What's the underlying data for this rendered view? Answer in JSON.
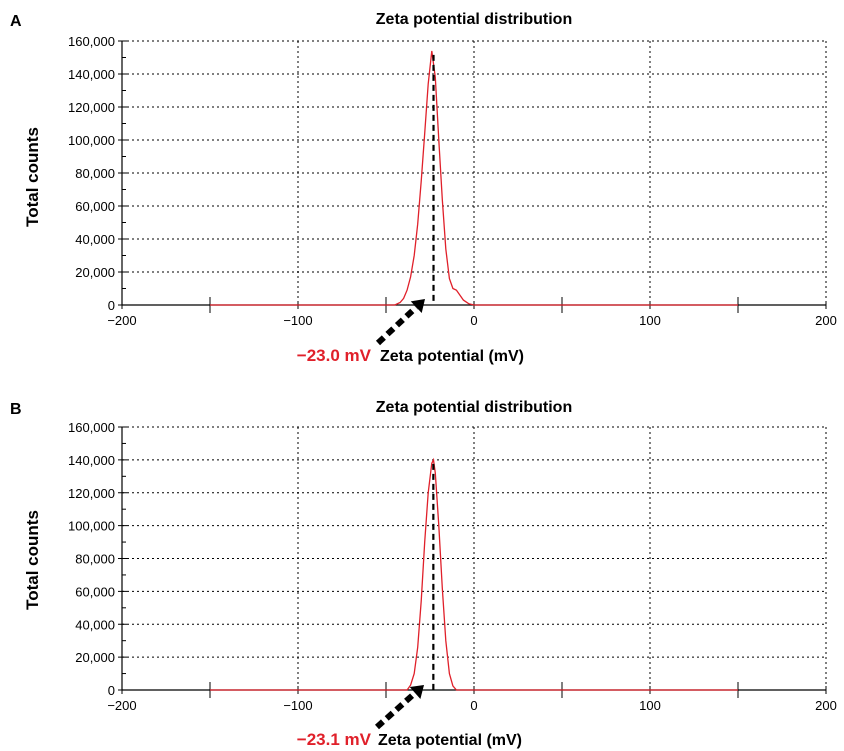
{
  "chart_data": [
    {
      "panel": "A",
      "type": "line",
      "title": "Zeta potential distribution",
      "xlabel": "Zeta potential (mV)",
      "ylabel": "Total counts",
      "xlim": [
        -200,
        200
      ],
      "ylim": [
        0,
        160000
      ],
      "xticks": [
        -200,
        -100,
        0,
        100,
        200
      ],
      "xtick_labels": [
        "−200",
        "−100",
        "0",
        "100",
        "200"
      ],
      "yticks": [
        0,
        20000,
        40000,
        60000,
        80000,
        100000,
        120000,
        140000,
        160000
      ],
      "ytick_labels": [
        "0",
        "20,000",
        "40,000",
        "60,000",
        "80,000",
        "100,000",
        "120,000",
        "140,000",
        "160,000"
      ],
      "grid": true,
      "line_color": "#e0202a",
      "peak_label": "−23.0 mV",
      "peak_x": -23.0,
      "series": [
        {
          "x": [
            -150,
            -45,
            -42,
            -40,
            -38,
            -36,
            -34,
            -32,
            -30,
            -28,
            -26,
            -24,
            -22,
            -20,
            -18,
            -16,
            -14,
            -12,
            -10,
            -8,
            -6,
            -3,
            0,
            150
          ],
          "y": [
            0,
            0,
            1500,
            4000,
            9000,
            17000,
            30000,
            49000,
            75000,
            104000,
            134000,
            154000,
            138000,
            100000,
            64000,
            34000,
            16000,
            10000,
            9000,
            6000,
            3000,
            800,
            0,
            0
          ]
        }
      ]
    },
    {
      "panel": "B",
      "type": "line",
      "title": "Zeta potential distribution",
      "xlabel": "Zeta potential (mV)",
      "ylabel": "Total counts",
      "xlim": [
        -200,
        200
      ],
      "ylim": [
        0,
        160000
      ],
      "xticks": [
        -200,
        -100,
        0,
        100,
        200
      ],
      "xtick_labels": [
        "−200",
        "−100",
        "0",
        "100",
        "200"
      ],
      "yticks": [
        0,
        20000,
        40000,
        60000,
        80000,
        100000,
        120000,
        140000,
        160000
      ],
      "ytick_labels": [
        "0",
        "20,000",
        "40,000",
        "60,000",
        "80,000",
        "100,000",
        "120,000",
        "140,000",
        "160,000"
      ],
      "grid": true,
      "line_color": "#e0202a",
      "peak_label": "−23.1 mV",
      "peak_x": -23.1,
      "series": [
        {
          "x": [
            -150,
            -38,
            -36,
            -34,
            -32,
            -30,
            -28,
            -26,
            -24,
            -23,
            -22,
            -20,
            -18,
            -16,
            -14,
            -12,
            -10,
            150
          ],
          "y": [
            0,
            0,
            3000,
            10000,
            26000,
            54000,
            90000,
            120000,
            138000,
            140000,
            132000,
            100000,
            62000,
            30000,
            10000,
            2500,
            0,
            0
          ]
        }
      ]
    }
  ],
  "panel_labels": {
    "a": "A",
    "b": "B"
  }
}
